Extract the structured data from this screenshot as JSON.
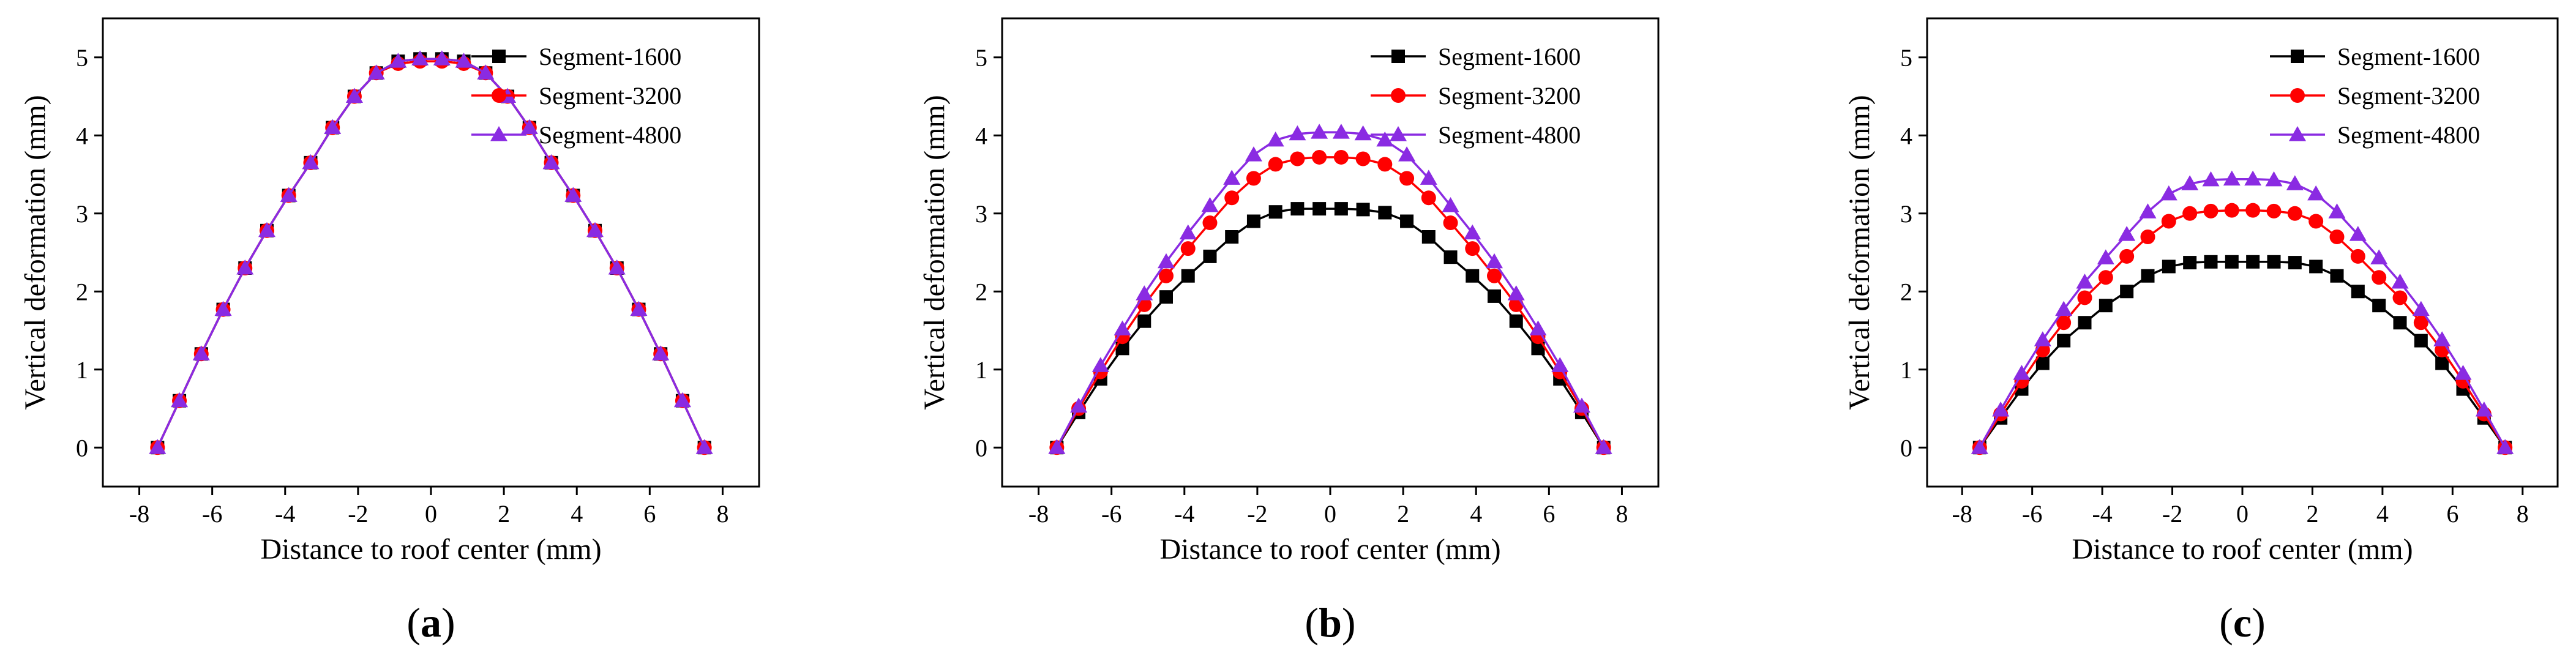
{
  "colors": {
    "Segment-1600": "#000000",
    "Segment-3200": "#ff0000",
    "Segment-4800": "#8a2be2"
  },
  "chart_data": [
    {
      "type": "line",
      "panel_label": {
        "open": "(",
        "letter": "a",
        "close": ")"
      },
      "xlabel": "Distance to roof center (mm)",
      "ylabel": "Vertical deformation (mm)",
      "xlim": [
        -9,
        9
      ],
      "ylim": [
        -0.5,
        5.5
      ],
      "xticks": [
        -8,
        -6,
        -4,
        -2,
        0,
        2,
        4,
        6,
        8
      ],
      "yticks": [
        0,
        1,
        2,
        3,
        4,
        5
      ],
      "legend_position": "top-right",
      "x": [
        -7.5,
        -6.9,
        -6.3,
        -5.7,
        -5.1,
        -4.5,
        -3.9,
        -3.3,
        -2.7,
        -2.1,
        -1.5,
        -0.9,
        -0.3,
        0.3,
        0.9,
        1.5,
        2.1,
        2.7,
        3.3,
        3.9,
        4.5,
        5.1,
        5.7,
        6.3,
        6.9,
        7.5
      ],
      "series": [
        {
          "name": "Segment-1600",
          "marker": "square",
          "values": [
            0,
            0.6,
            1.2,
            1.77,
            2.3,
            2.78,
            3.23,
            3.65,
            4.1,
            4.5,
            4.8,
            4.95,
            4.98,
            4.98,
            4.95,
            4.8,
            4.5,
            4.1,
            3.65,
            3.23,
            2.78,
            2.3,
            1.77,
            1.2,
            0.6,
            0
          ]
        },
        {
          "name": "Segment-3200",
          "marker": "circle",
          "values": [
            0,
            0.6,
            1.2,
            1.77,
            2.3,
            2.78,
            3.23,
            3.65,
            4.1,
            4.5,
            4.8,
            4.92,
            4.95,
            4.95,
            4.92,
            4.8,
            4.5,
            4.1,
            3.65,
            3.23,
            2.78,
            2.3,
            1.77,
            1.2,
            0.6,
            0
          ]
        },
        {
          "name": "Segment-4800",
          "marker": "triangle",
          "values": [
            0,
            0.6,
            1.2,
            1.77,
            2.3,
            2.78,
            3.23,
            3.65,
            4.1,
            4.5,
            4.8,
            4.95,
            4.98,
            4.98,
            4.95,
            4.8,
            4.5,
            4.1,
            3.65,
            3.23,
            2.78,
            2.3,
            1.77,
            1.2,
            0.6,
            0
          ]
        }
      ]
    },
    {
      "type": "line",
      "panel_label": {
        "open": "(",
        "letter": "b",
        "close": ")"
      },
      "xlabel": "Distance to roof center (mm)",
      "ylabel": "Vertical deformation (mm)",
      "xlim": [
        -9,
        9
      ],
      "ylim": [
        -0.5,
        5.5
      ],
      "xticks": [
        -8,
        -6,
        -4,
        -2,
        0,
        2,
        4,
        6,
        8
      ],
      "yticks": [
        0,
        1,
        2,
        3,
        4,
        5
      ],
      "legend_position": "top-right",
      "x": [
        -7.5,
        -6.9,
        -6.3,
        -5.7,
        -5.1,
        -4.5,
        -3.9,
        -3.3,
        -2.7,
        -2.1,
        -1.5,
        -0.9,
        -0.3,
        0.3,
        0.9,
        1.5,
        2.1,
        2.7,
        3.3,
        3.9,
        4.5,
        5.1,
        5.7,
        6.3,
        6.9,
        7.5
      ],
      "series": [
        {
          "name": "Segment-1600",
          "marker": "square",
          "values": [
            0,
            0.45,
            0.88,
            1.27,
            1.62,
            1.93,
            2.2,
            2.45,
            2.7,
            2.9,
            3.02,
            3.06,
            3.06,
            3.06,
            3.05,
            3.01,
            2.9,
            2.7,
            2.44,
            2.2,
            1.94,
            1.62,
            1.27,
            0.88,
            0.45,
            0
          ]
        },
        {
          "name": "Segment-3200",
          "marker": "circle",
          "values": [
            0,
            0.5,
            0.97,
            1.42,
            1.83,
            2.2,
            2.55,
            2.88,
            3.2,
            3.45,
            3.63,
            3.7,
            3.72,
            3.72,
            3.7,
            3.63,
            3.45,
            3.2,
            2.88,
            2.55,
            2.2,
            1.83,
            1.42,
            0.97,
            0.5,
            0
          ]
        },
        {
          "name": "Segment-4800",
          "marker": "triangle",
          "values": [
            0,
            0.53,
            1.05,
            1.52,
            1.97,
            2.38,
            2.75,
            3.1,
            3.45,
            3.75,
            3.94,
            4.02,
            4.04,
            4.04,
            4.02,
            3.94,
            3.75,
            3.45,
            3.1,
            2.75,
            2.38,
            1.97,
            1.52,
            1.05,
            0.53,
            0
          ]
        }
      ]
    },
    {
      "type": "line",
      "panel_label": {
        "open": "(",
        "letter": "c",
        "close": ")"
      },
      "xlabel": "Distance to roof center (mm)",
      "ylabel": "Vertical deformation (mm)",
      "xlim": [
        -9,
        9
      ],
      "ylim": [
        -0.5,
        5.5
      ],
      "xticks": [
        -8,
        -6,
        -4,
        -2,
        0,
        2,
        4,
        6,
        8
      ],
      "yticks": [
        0,
        1,
        2,
        3,
        4,
        5
      ],
      "legend_position": "top-right",
      "x": [
        -7.5,
        -6.9,
        -6.3,
        -5.7,
        -5.1,
        -4.5,
        -3.9,
        -3.3,
        -2.7,
        -2.1,
        -1.5,
        -0.9,
        -0.3,
        0.3,
        0.9,
        1.5,
        2.1,
        2.7,
        3.3,
        3.9,
        4.5,
        5.1,
        5.7,
        6.3,
        6.9,
        7.5
      ],
      "series": [
        {
          "name": "Segment-1600",
          "marker": "square",
          "values": [
            0,
            0.38,
            0.75,
            1.08,
            1.37,
            1.6,
            1.82,
            2.0,
            2.2,
            2.32,
            2.37,
            2.38,
            2.38,
            2.38,
            2.38,
            2.37,
            2.32,
            2.2,
            2.0,
            1.82,
            1.6,
            1.37,
            1.08,
            0.75,
            0.38,
            0
          ]
        },
        {
          "name": "Segment-3200",
          "marker": "circle",
          "values": [
            0,
            0.43,
            0.85,
            1.25,
            1.6,
            1.92,
            2.18,
            2.45,
            2.7,
            2.9,
            3.0,
            3.03,
            3.04,
            3.04,
            3.03,
            3.0,
            2.9,
            2.7,
            2.45,
            2.18,
            1.92,
            1.6,
            1.25,
            0.85,
            0.43,
            0
          ]
        },
        {
          "name": "Segment-4800",
          "marker": "triangle",
          "values": [
            0,
            0.48,
            0.95,
            1.38,
            1.77,
            2.12,
            2.43,
            2.73,
            3.02,
            3.25,
            3.38,
            3.43,
            3.44,
            3.44,
            3.43,
            3.38,
            3.25,
            3.02,
            2.73,
            2.43,
            2.12,
            1.77,
            1.38,
            0.95,
            0.48,
            0
          ]
        }
      ]
    }
  ]
}
